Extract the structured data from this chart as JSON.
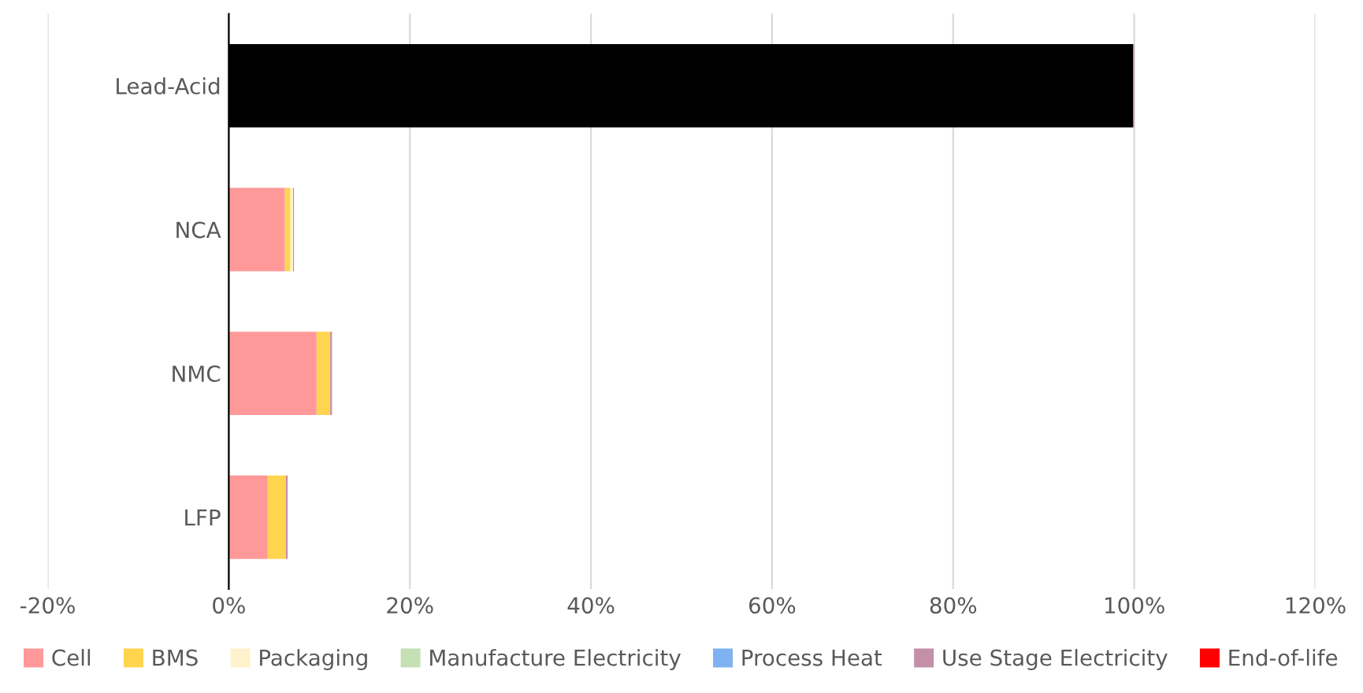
{
  "chart_data": {
    "type": "bar",
    "orientation": "horizontal",
    "stacked": true,
    "categories": [
      "Lead-Acid",
      "NCA",
      "NMC",
      "LFP"
    ],
    "series": [
      {
        "name": "Cell",
        "color": "#ff9999",
        "colors": [
          "#000000",
          "#ff9999",
          "#ff9999",
          "#ff9999"
        ],
        "values": [
          99.9,
          6.2,
          9.7,
          4.3
        ]
      },
      {
        "name": "BMS",
        "color": "#ffd54f",
        "values": [
          0,
          0.6,
          1.5,
          2.0
        ]
      },
      {
        "name": "Packaging",
        "color": "#fff2cc",
        "values": [
          0,
          0.3,
          null,
          0
        ]
      },
      {
        "name": "Manufacture Electricity",
        "color": "#c5e0b4",
        "values": [
          0,
          0,
          0,
          0
        ]
      },
      {
        "name": "Process Heat",
        "color": "#7fb2f0",
        "values": [
          0,
          0,
          0,
          0
        ]
      },
      {
        "name": "Use Stage Electricity",
        "color": "#c490a8",
        "values": [
          0.1,
          0.1,
          0.2,
          0.2
        ]
      },
      {
        "name": "End-of-life",
        "color": "#ff0000",
        "values": [
          0,
          0,
          0,
          0
        ]
      }
    ],
    "xlim": [
      -20,
      120
    ],
    "xticks": [
      {
        "value": -20,
        "label": "-20%"
      },
      {
        "value": 0,
        "label": "0%"
      },
      {
        "value": 20,
        "label": "20%"
      },
      {
        "value": 40,
        "label": "40%"
      },
      {
        "value": 60,
        "label": "60%"
      },
      {
        "value": 80,
        "label": "80%"
      },
      {
        "value": 100,
        "label": "100%"
      },
      {
        "value": 120,
        "label": "120%"
      }
    ],
    "grid": "x",
    "legend": "bottom"
  }
}
